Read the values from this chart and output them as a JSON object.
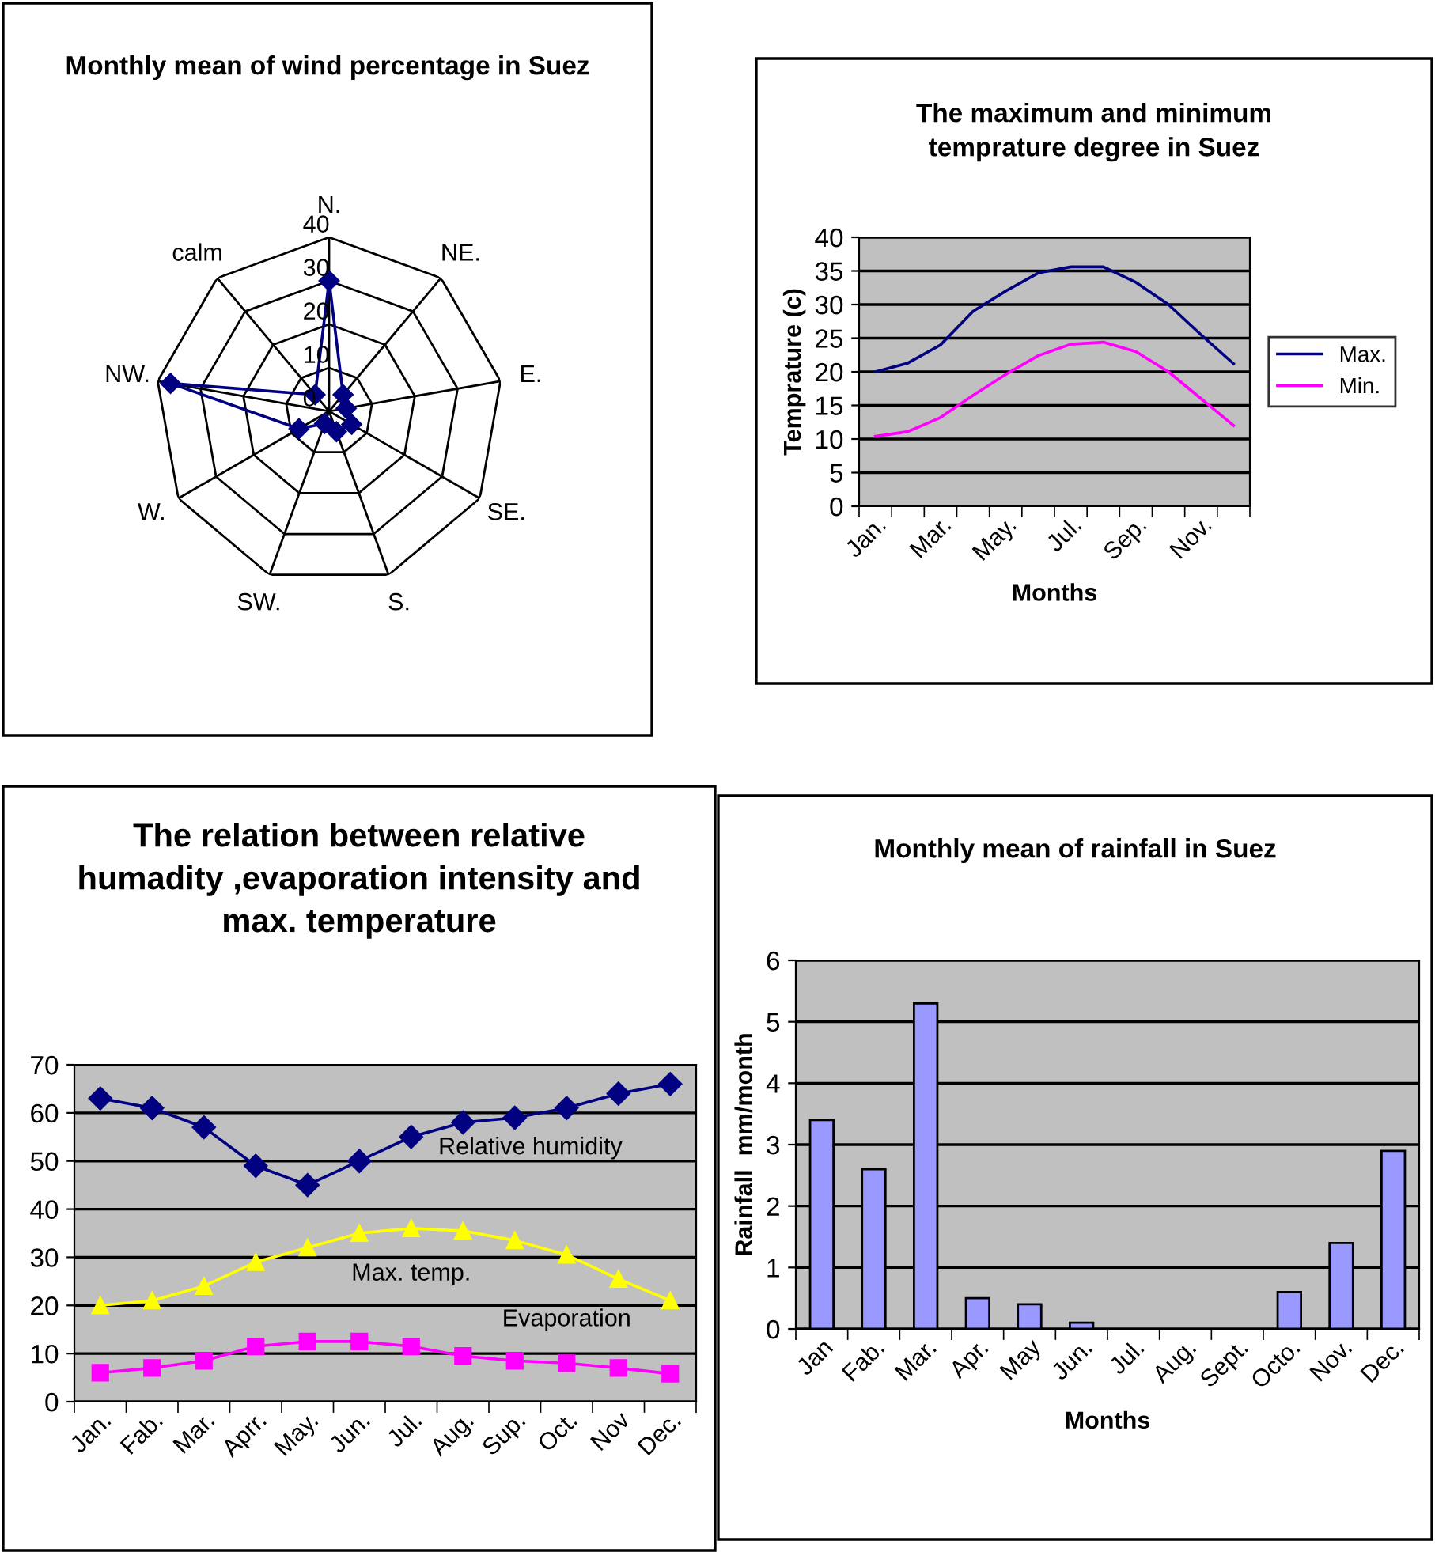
{
  "chart_data": [
    {
      "type": "radar",
      "title": "Monthly mean of wind percentage in Suez",
      "categories": [
        "N.",
        "NE.",
        "E.",
        "SE.",
        "S.",
        "SW.",
        "W.",
        "NW.",
        "calm"
      ],
      "series": [
        {
          "color": "#000080",
          "values": [
            30,
            5,
            4,
            6,
            5,
            3,
            8,
            37,
            5
          ]
        }
      ],
      "ylim": [
        0,
        40
      ],
      "yticks": [
        0,
        10,
        20,
        30,
        40
      ],
      "grid": true,
      "marker": "diamond"
    },
    {
      "type": "line",
      "title": "The maximum and minimum\ntemprature degree in Suez",
      "xlabel": "Months",
      "ylabel": "Temprature (c)",
      "categories": [
        "Jan.",
        null,
        "Mar.",
        null,
        "May.",
        null,
        "Jul.",
        null,
        "Sep.",
        null,
        "Nov.",
        null
      ],
      "series": [
        {
          "name": "Max.",
          "color": "#000080",
          "values": [
            20,
            21.3,
            24,
            29,
            32,
            34.7,
            35.6,
            35.6,
            33.3,
            30,
            25.5,
            21.2
          ]
        },
        {
          "name": "Min.",
          "color": "#ff00ff",
          "values": [
            10.4,
            11.1,
            13.2,
            16.5,
            19.6,
            22.4,
            24.1,
            24.4,
            23,
            20,
            16,
            12
          ]
        }
      ],
      "ylim": [
        0,
        40
      ],
      "yticks": [
        0,
        5,
        10,
        15,
        20,
        25,
        30,
        35,
        40
      ],
      "grid": "y",
      "legend": "right",
      "marker": "none"
    },
    {
      "type": "line",
      "title": "The relation between relative\nhumadity ,evaporation intensity and\nmax. temperature",
      "categories": [
        "Jan.",
        "Fab.",
        "Mar.",
        "Aprr.",
        "May.",
        "Jun.",
        "Jul.",
        "Aug.",
        "Sup.",
        "Oct.",
        "Nov",
        "Dec."
      ],
      "series": [
        {
          "name": "Relative humidity",
          "color": "#000080",
          "marker": "diamond",
          "values": [
            63,
            61,
            57,
            49,
            45,
            50,
            55,
            58,
            59,
            61,
            64,
            66
          ]
        },
        {
          "name": "Max. temp.",
          "color": "#ffff00",
          "marker": "triangle",
          "values": [
            20,
            21,
            24,
            29,
            32,
            35,
            36,
            35.5,
            33.5,
            30.5,
            25.5,
            21
          ]
        },
        {
          "name": "Evaporation",
          "color": "#ff00ff",
          "marker": "square",
          "values": [
            6,
            7,
            8.5,
            11.5,
            12.5,
            12.5,
            11.5,
            9.5,
            8.5,
            8,
            7,
            5.8
          ]
        }
      ],
      "ylim": [
        0,
        70
      ],
      "yticks": [
        0,
        10,
        20,
        30,
        40,
        50,
        60,
        70
      ],
      "grid": "y"
    },
    {
      "type": "bar",
      "title": "Monthly mean of rainfall in Suez",
      "xlabel": "Months",
      "ylabel": "Rainfall  mm/month",
      "categories": [
        "Jan",
        "Fab.",
        "Mar.",
        "Apr.",
        "May",
        "Jun.",
        "Jul.",
        "Aug.",
        "Sept.",
        "Octo.",
        "Nov.",
        "Dec."
      ],
      "values": [
        3.4,
        2.6,
        5.3,
        0.5,
        0.4,
        0.1,
        0,
        0,
        0,
        0.6,
        1.4,
        2.9
      ],
      "color": "#9999ff",
      "ylim": [
        0,
        6
      ],
      "yticks": [
        0,
        1,
        2,
        3,
        4,
        5,
        6
      ],
      "grid": "y"
    }
  ]
}
